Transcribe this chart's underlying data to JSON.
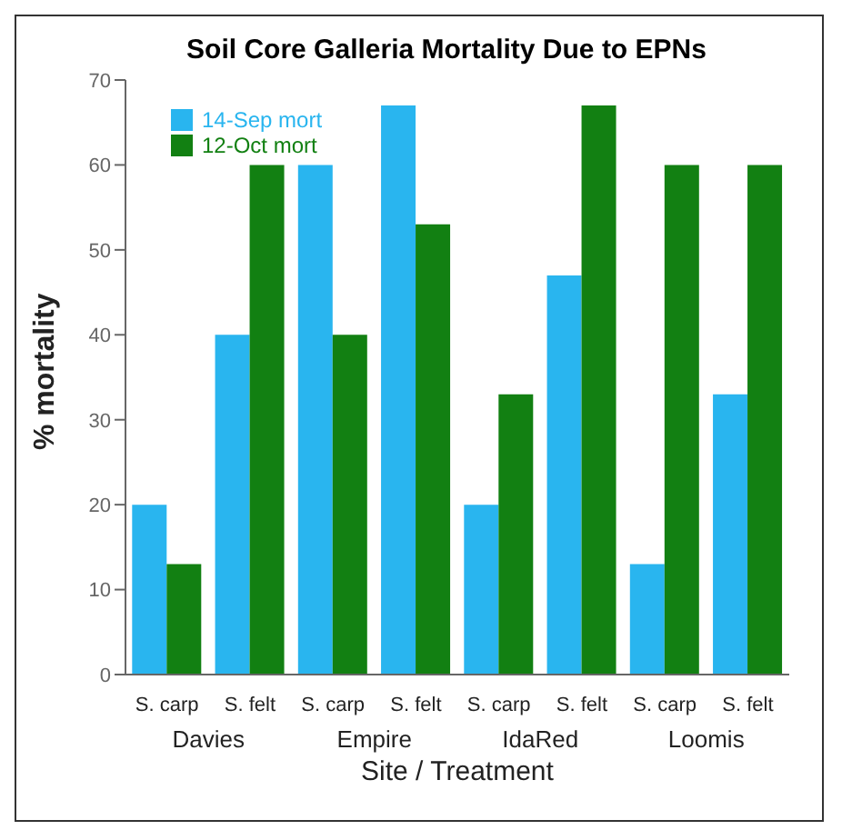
{
  "chart_data": {
    "type": "bar",
    "title": "Soil Core Galleria Mortality Due to EPNs",
    "xlabel": "Site / Treatment",
    "ylabel": "% mortality",
    "categories": [
      "S. carp",
      "S. felt",
      "S. carp",
      "S. felt",
      "S. carp",
      "S. felt",
      "S. carp",
      "S. felt"
    ],
    "annotations": [
      "Davies",
      "Empire",
      "IdaRed",
      "Loomis"
    ],
    "series": [
      {
        "name": "14-Sep mort",
        "color": "#29b5ef",
        "values": [
          20,
          40,
          60,
          67,
          20,
          47,
          13,
          33
        ]
      },
      {
        "name": "12-Oct mort",
        "color": "#128012",
        "values": [
          13,
          60,
          40,
          53,
          33,
          67,
          60,
          60
        ]
      }
    ],
    "ylim": [
      0,
      70
    ],
    "yticks": [
      0,
      10,
      20,
      30,
      40,
      50,
      60,
      70
    ],
    "grid": false,
    "legend": "top left"
  }
}
